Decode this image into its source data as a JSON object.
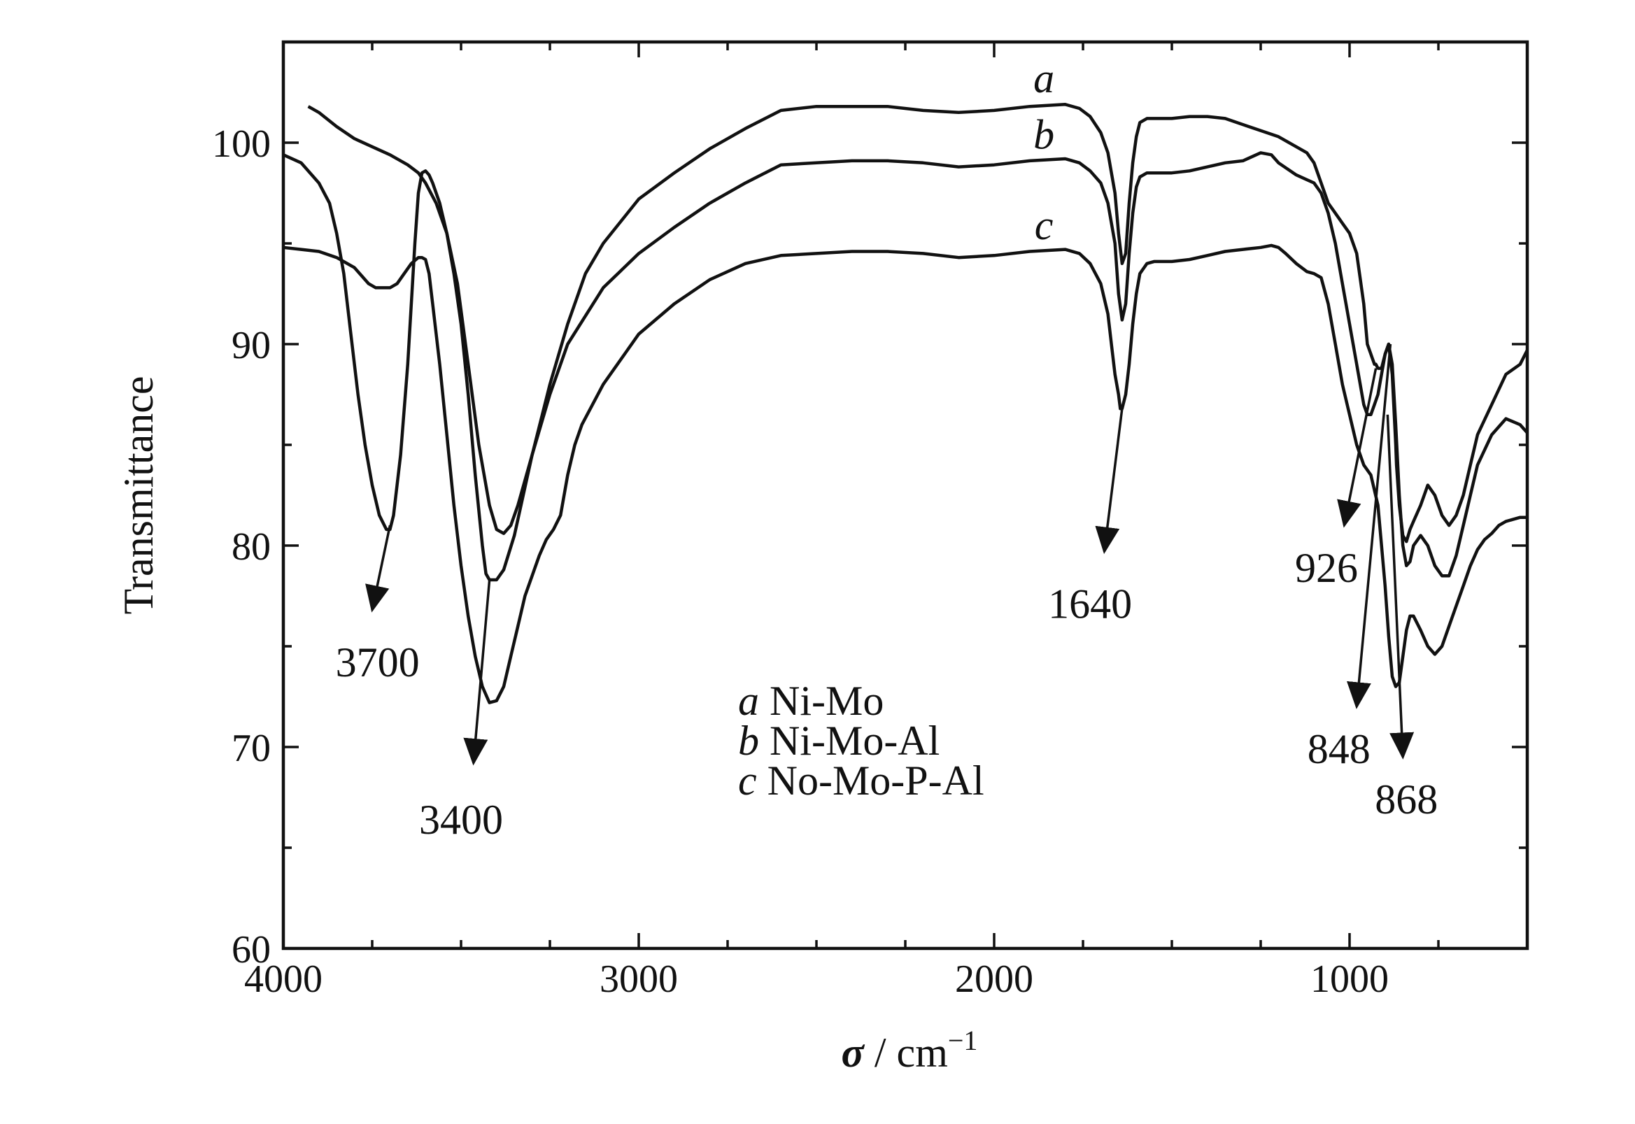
{
  "chart_data": {
    "type": "line",
    "xlabel_symbol": "σ",
    "xlabel_unit": " / cm",
    "xlabel_exp": "−1",
    "ylabel": "Transmittance",
    "xlim": [
      4000,
      500
    ],
    "ylim": [
      60,
      105
    ],
    "x_ticks": [
      4000,
      3000,
      2000,
      1000
    ],
    "y_ticks": [
      60,
      70,
      80,
      90,
      100
    ],
    "x_tick_labels": [
      "4000",
      "3000",
      "2000",
      "1000"
    ],
    "y_tick_labels": [
      "60",
      "70",
      "80",
      "90",
      "100"
    ],
    "series": [
      {
        "name": "a",
        "legend_text": "Ni-Mo",
        "label_at": [
          1860,
          102.5
        ],
        "x": [
          3930,
          3900,
          3850,
          3800,
          3750,
          3700,
          3650,
          3620,
          3600,
          3570,
          3540,
          3510,
          3480,
          3450,
          3420,
          3400,
          3380,
          3360,
          3340,
          3300,
          3250,
          3200,
          3150,
          3100,
          3000,
          2900,
          2800,
          2700,
          2600,
          2500,
          2400,
          2300,
          2200,
          2100,
          2000,
          1900,
          1800,
          1760,
          1730,
          1700,
          1680,
          1660,
          1650,
          1640,
          1630,
          1620,
          1610,
          1600,
          1590,
          1570,
          1550,
          1500,
          1450,
          1400,
          1350,
          1300,
          1250,
          1200,
          1150,
          1120,
          1100,
          1080,
          1060,
          1040,
          1020,
          1000,
          980,
          960,
          950,
          940,
          930,
          926,
          920,
          910,
          900,
          890,
          880,
          870,
          868,
          860,
          850,
          840,
          830,
          820,
          800,
          780,
          760,
          740,
          720,
          700,
          680,
          660,
          640,
          600,
          560,
          520,
          500
        ],
        "y": [
          101.8,
          101.5,
          100.8,
          100.2,
          99.8,
          99.4,
          98.9,
          98.5,
          98.0,
          97.0,
          95.5,
          93.0,
          89.0,
          85.0,
          82.0,
          80.8,
          80.6,
          81.0,
          82.0,
          84.5,
          88.0,
          91.0,
          93.5,
          95.0,
          97.2,
          98.5,
          99.7,
          100.7,
          101.6,
          101.8,
          101.8,
          101.8,
          101.6,
          101.5,
          101.6,
          101.8,
          101.9,
          101.7,
          101.3,
          100.5,
          99.5,
          97.5,
          95.5,
          94.0,
          94.5,
          97.0,
          99.0,
          100.3,
          101.0,
          101.2,
          101.2,
          101.2,
          101.3,
          101.3,
          101.2,
          100.9,
          100.6,
          100.3,
          99.8,
          99.5,
          99.0,
          98.0,
          97.0,
          96.5,
          96.0,
          95.5,
          94.5,
          92.0,
          90.0,
          89.5,
          89.0,
          89.0,
          88.8,
          88.8,
          89.5,
          90.0,
          88.5,
          85.0,
          84.0,
          82.0,
          80.5,
          80.2,
          80.8,
          81.2,
          82.0,
          83.0,
          82.5,
          81.5,
          81.0,
          81.5,
          82.5,
          84.0,
          85.5,
          87.0,
          88.5,
          89.0,
          89.7
        ]
      },
      {
        "name": "b",
        "legend_text": "Ni-Mo-Al",
        "label_at": [
          1860,
          99.7
        ],
        "x": [
          4000,
          3950,
          3900,
          3870,
          3850,
          3830,
          3810,
          3790,
          3770,
          3750,
          3730,
          3710,
          3700,
          3690,
          3670,
          3650,
          3630,
          3620,
          3610,
          3600,
          3590,
          3580,
          3560,
          3540,
          3520,
          3500,
          3480,
          3460,
          3440,
          3430,
          3420,
          3400,
          3380,
          3350,
          3300,
          3250,
          3200,
          3100,
          3000,
          2900,
          2800,
          2700,
          2600,
          2500,
          2400,
          2300,
          2200,
          2100,
          2000,
          1900,
          1800,
          1760,
          1730,
          1700,
          1680,
          1660,
          1650,
          1640,
          1630,
          1620,
          1610,
          1600,
          1590,
          1570,
          1550,
          1500,
          1450,
          1400,
          1350,
          1300,
          1250,
          1220,
          1200,
          1150,
          1100,
          1080,
          1060,
          1040,
          1020,
          1000,
          980,
          960,
          950,
          940,
          930,
          920,
          910,
          900,
          890,
          880,
          870,
          860,
          850,
          840,
          830,
          820,
          800,
          780,
          760,
          740,
          720,
          700,
          680,
          660,
          640,
          600,
          560,
          520,
          500
        ],
        "y": [
          99.4,
          99.0,
          98.0,
          97.0,
          95.5,
          93.5,
          90.5,
          87.5,
          85.0,
          83.0,
          81.5,
          80.8,
          80.8,
          81.5,
          84.5,
          89.0,
          95.0,
          97.5,
          98.5,
          98.6,
          98.4,
          98.0,
          97.0,
          95.5,
          93.5,
          91.0,
          87.5,
          83.5,
          80.0,
          78.6,
          78.3,
          78.3,
          78.8,
          80.5,
          84.5,
          87.5,
          90.0,
          92.8,
          94.5,
          95.8,
          97.0,
          98.0,
          98.9,
          99.0,
          99.1,
          99.1,
          99.0,
          98.8,
          98.9,
          99.1,
          99.2,
          99.0,
          98.6,
          98.0,
          97.0,
          95.0,
          92.5,
          91.2,
          92.0,
          94.5,
          96.5,
          97.8,
          98.3,
          98.5,
          98.5,
          98.5,
          98.6,
          98.8,
          99.0,
          99.1,
          99.5,
          99.4,
          99.0,
          98.4,
          98.0,
          97.5,
          96.5,
          95.0,
          93.0,
          91.0,
          89.0,
          87.0,
          86.5,
          86.5,
          87.0,
          87.5,
          88.5,
          89.5,
          90.0,
          89.0,
          86.0,
          82.5,
          80.0,
          79.0,
          79.2,
          80.0,
          80.5,
          80.0,
          79.0,
          78.5,
          78.5,
          79.5,
          81.0,
          82.5,
          84.0,
          85.5,
          86.3,
          86.0,
          85.6
        ]
      },
      {
        "name": "c",
        "legend_text": "No-Mo-P-Al",
        "label_at": [
          1860,
          95.2
        ],
        "x": [
          4000,
          3950,
          3900,
          3850,
          3800,
          3760,
          3740,
          3720,
          3700,
          3680,
          3660,
          3640,
          3620,
          3610,
          3600,
          3590,
          3580,
          3560,
          3540,
          3520,
          3500,
          3480,
          3460,
          3440,
          3420,
          3400,
          3380,
          3360,
          3340,
          3320,
          3300,
          3280,
          3260,
          3240,
          3220,
          3200,
          3180,
          3160,
          3100,
          3000,
          2900,
          2800,
          2700,
          2600,
          2500,
          2400,
          2300,
          2200,
          2100,
          2000,
          1900,
          1800,
          1760,
          1730,
          1700,
          1680,
          1670,
          1660,
          1650,
          1645,
          1640,
          1630,
          1620,
          1610,
          1600,
          1590,
          1570,
          1550,
          1500,
          1450,
          1400,
          1350,
          1300,
          1250,
          1220,
          1200,
          1180,
          1150,
          1120,
          1100,
          1080,
          1060,
          1040,
          1020,
          1000,
          980,
          960,
          940,
          920,
          910,
          900,
          890,
          880,
          870,
          860,
          850,
          840,
          830,
          820,
          800,
          780,
          760,
          740,
          720,
          700,
          680,
          660,
          640,
          620,
          600,
          580,
          560,
          540,
          520,
          500
        ],
        "y": [
          94.8,
          94.7,
          94.6,
          94.3,
          93.8,
          93.0,
          92.8,
          92.8,
          92.8,
          93.0,
          93.5,
          94.0,
          94.3,
          94.3,
          94.2,
          93.5,
          92.0,
          89.0,
          85.5,
          82.0,
          79.0,
          76.5,
          74.5,
          73.0,
          72.2,
          72.3,
          73.0,
          74.5,
          76.0,
          77.5,
          78.5,
          79.5,
          80.3,
          80.8,
          81.5,
          83.5,
          85.0,
          86.0,
          88.0,
          90.5,
          92.0,
          93.2,
          94.0,
          94.4,
          94.5,
          94.6,
          94.6,
          94.5,
          94.3,
          94.4,
          94.6,
          94.7,
          94.5,
          94.0,
          93.0,
          91.5,
          90.0,
          88.5,
          87.5,
          86.8,
          86.8,
          87.5,
          89.0,
          91.0,
          92.5,
          93.5,
          94.0,
          94.1,
          94.1,
          94.2,
          94.4,
          94.6,
          94.7,
          94.8,
          94.9,
          94.8,
          94.5,
          94.0,
          93.6,
          93.5,
          93.3,
          92.0,
          90.0,
          88.0,
          86.5,
          85.0,
          84.0,
          83.5,
          82.0,
          80.0,
          78.0,
          75.5,
          73.5,
          73.0,
          73.2,
          74.5,
          75.8,
          76.5,
          76.5,
          75.8,
          75.0,
          74.6,
          75.0,
          76.0,
          77.0,
          78.0,
          79.0,
          79.8,
          80.3,
          80.6,
          81.0,
          81.2,
          81.3,
          81.4,
          81.4
        ]
      }
    ],
    "annotations": [
      {
        "label": "3700",
        "from": [
          3700,
          81.0
        ],
        "to": [
          3750,
          76.8
        ],
        "text_at": [
          3735,
          73.5
        ]
      },
      {
        "label": "3400",
        "from": [
          3420,
          78.3
        ],
        "to": [
          3465,
          69.2
        ],
        "text_at": [
          3500,
          65.7
        ]
      },
      {
        "label": "1640",
        "from": [
          1640,
          86.8
        ],
        "to": [
          1690,
          79.7
        ],
        "text_at": [
          1730,
          76.4
        ]
      },
      {
        "label": "926",
        "from": [
          926,
          88.8
        ],
        "to": [
          1015,
          81.0
        ],
        "text_at": [
          1065,
          78.2
        ]
      },
      {
        "label": "848",
        "from": [
          885,
          90.0
        ],
        "to": [
          980,
          72.0
        ],
        "text_at": [
          1030,
          69.2
        ]
      },
      {
        "label": "868",
        "from": [
          893,
          86.5
        ],
        "to": [
          850,
          69.5
        ],
        "text_at": [
          840,
          66.7
        ]
      }
    ],
    "grid": false,
    "legend_position": "center-bottom"
  }
}
